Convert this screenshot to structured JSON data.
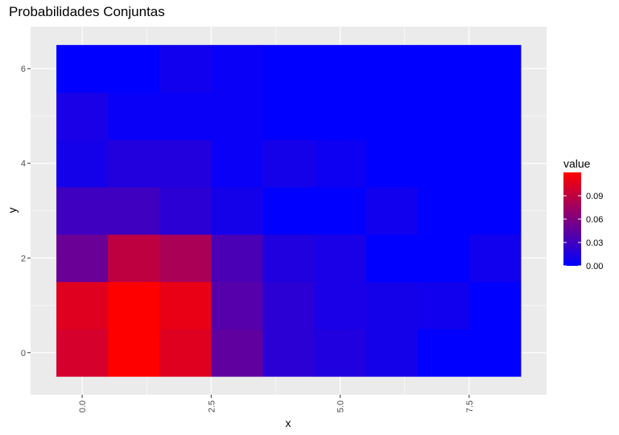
{
  "chart_data": {
    "type": "heatmap",
    "title": "Probabilidades Conjuntas",
    "xlabel": "x",
    "ylabel": "y",
    "xlim": [
      -0.5,
      8.5
    ],
    "ylim": [
      -0.5,
      6.5
    ],
    "x_ticks": [
      0,
      2.5,
      5,
      7.5
    ],
    "x_tick_labels": [
      "0.0",
      "2.5",
      "5.0",
      "7.5"
    ],
    "y_ticks": [
      0,
      2,
      4,
      6
    ],
    "y_tick_labels": [
      "0",
      "2",
      "4",
      "6"
    ],
    "x": [
      0,
      1,
      2,
      3,
      4,
      5,
      6,
      7,
      8
    ],
    "y": [
      0,
      1,
      2,
      3,
      4,
      5,
      6
    ],
    "values": [
      [
        0.1,
        0.12,
        0.105,
        0.045,
        0.02,
        0.015,
        0.01,
        0.0,
        0.0
      ],
      [
        0.105,
        0.12,
        0.11,
        0.04,
        0.02,
        0.012,
        0.01,
        0.008,
        0.0
      ],
      [
        0.05,
        0.09,
        0.08,
        0.035,
        0.015,
        0.012,
        0.0,
        0.0,
        0.008
      ],
      [
        0.03,
        0.03,
        0.02,
        0.01,
        0.0,
        0.0,
        0.008,
        0.0,
        0.0
      ],
      [
        0.01,
        0.016,
        0.016,
        0.004,
        0.01,
        0.006,
        0.0,
        0.0,
        0.0
      ],
      [
        0.012,
        0.004,
        0.004,
        0.004,
        0.0,
        0.0,
        0.0,
        0.0,
        0.0
      ],
      [
        0.0,
        0.0,
        0.008,
        0.004,
        0.0,
        0.0,
        0.0,
        0.0,
        0.0
      ]
    ],
    "color_low": "#0000ff",
    "color_high": "#ff0000",
    "color_range": [
      0,
      0.12
    ],
    "panel_background": "#ebebeb",
    "grid": true,
    "legend": {
      "title": "value",
      "position": "right",
      "tick_values": [
        0.0,
        0.03,
        0.06,
        0.09
      ],
      "tick_labels": [
        "0.00",
        "0.03",
        "0.06",
        "0.09"
      ]
    }
  }
}
